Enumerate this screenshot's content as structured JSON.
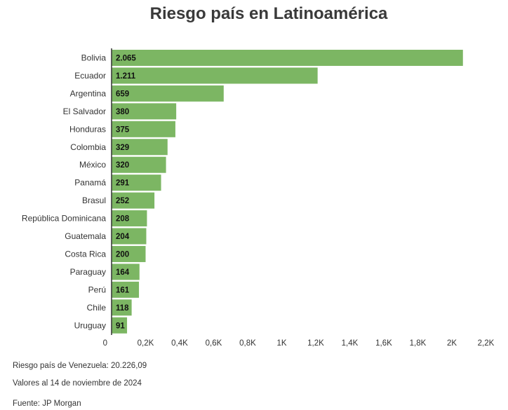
{
  "chart_data": {
    "type": "bar",
    "orientation": "horizontal",
    "title": "Riesgo país en Latinoamérica",
    "categories": [
      "Bolivia",
      "Ecuador",
      "Argentina",
      "El Salvador",
      "Honduras",
      "Colombia",
      "México",
      "Panamá",
      "Brasul",
      "República Dominicana",
      "Guatemala",
      "Costa Rica",
      "Paraguay",
      "Perú",
      "Chile",
      "Uruguay"
    ],
    "values": [
      2065,
      1211,
      659,
      380,
      375,
      329,
      320,
      291,
      252,
      208,
      204,
      200,
      164,
      161,
      118,
      91
    ],
    "value_labels": [
      "2.065",
      "1.211",
      "659",
      "380",
      "375",
      "329",
      "320",
      "291",
      "252",
      "208",
      "204",
      "200",
      "164",
      "161",
      "118",
      "91"
    ],
    "x_ticks": [
      0,
      200,
      400,
      600,
      800,
      1000,
      1200,
      1400,
      1600,
      1800,
      2000,
      2200
    ],
    "x_tick_labels": [
      "0",
      "0,2K",
      "0,4K",
      "0,6K",
      "0,8K",
      "1K",
      "1,2K",
      "1,4K",
      "1,6K",
      "1,8K",
      "2K",
      "2,2K"
    ],
    "xlim": [
      0,
      2200
    ],
    "bar_color": "#7cb663",
    "grid": false,
    "legend": false
  },
  "notes": {
    "venezuela": "Riesgo país de Venezuela: 20.226,09",
    "date": "Valores al 14 de noviembre de 2024",
    "source": "Fuente: JP Morgan"
  }
}
